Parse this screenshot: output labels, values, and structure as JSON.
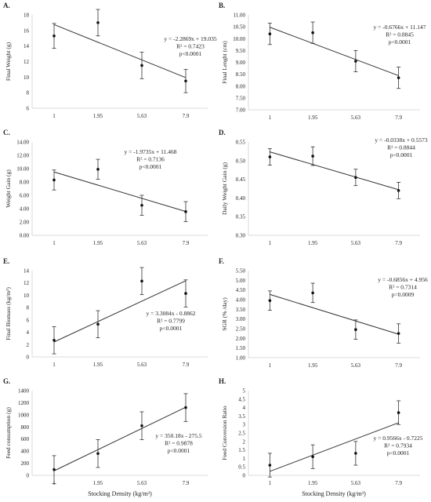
{
  "xlabel": "Stocking Density (kg/m³)",
  "chart_data": [
    {
      "id": "A",
      "letter": "A.",
      "type": "scatter",
      "ylabel": "Final Weight (g)",
      "categories": [
        "1",
        "1.95",
        "5.63",
        "7.9"
      ],
      "values": [
        15.3,
        17.0,
        11.5,
        9.5
      ],
      "errors": [
        1.6,
        1.7,
        1.7,
        1.5
      ],
      "ylim": [
        6,
        18
      ],
      "yticks": [
        6,
        8,
        10,
        12,
        14,
        16,
        18
      ],
      "tick_labels": [
        "6",
        "8",
        "10",
        "12",
        "14",
        "16",
        "18"
      ],
      "trend": [
        16.76,
        9.94
      ],
      "annotation": [
        "y = -2.2869x + 19.035",
        "R² = 0.7423",
        "p<0.0001"
      ],
      "ann_pos": "top-right"
    },
    {
      "id": "B",
      "letter": "B.",
      "type": "scatter",
      "ylabel": "Final Lenght (cm)",
      "categories": [
        "1",
        "1.95",
        "5.63",
        "7.9"
      ],
      "values": [
        10.2,
        10.25,
        9.05,
        8.35
      ],
      "errors": [
        0.45,
        0.45,
        0.45,
        0.45
      ],
      "ylim": [
        7.0,
        11.0
      ],
      "yticks": [
        7.0,
        7.5,
        8.0,
        8.5,
        9.0,
        9.5,
        10.0,
        10.5,
        11.0
      ],
      "tick_labels": [
        "7.00",
        "7.50",
        "8.00",
        "8.50",
        "9.00",
        "9.50",
        "10.00",
        "10.50",
        "11.00"
      ],
      "trend": [
        10.48,
        8.44
      ],
      "annotation": [
        "y = -0.6766x + 11.147",
        "R² = 0.8845",
        "p<0.0001"
      ],
      "ann_pos": "top-right"
    },
    {
      "id": "C",
      "letter": "C.",
      "type": "scatter",
      "ylabel": "Weight Gain (g)",
      "categories": [
        "1",
        "1.95",
        "5.63",
        "7.9"
      ],
      "values": [
        8.3,
        9.9,
        4.5,
        3.55
      ],
      "errors": [
        1.5,
        1.5,
        1.5,
        1.5
      ],
      "ylim": [
        0,
        14
      ],
      "yticks": [
        0,
        2,
        4,
        6,
        8,
        10,
        12,
        14
      ],
      "tick_labels": [
        "0.00",
        "2.00",
        "4.00",
        "6.00",
        "8.00",
        "10.00",
        "12.00",
        "14.00"
      ],
      "trend": [
        9.5,
        3.57
      ],
      "annotation": [
        "y = -1.9735x + 11.468",
        "R² = 0.7136",
        "p<0.0001"
      ],
      "ann_pos": "top-right"
    },
    {
      "id": "D",
      "letter": "D.",
      "type": "scatter",
      "ylabel": "Daily Weight Gain (g)",
      "categories": [
        "1",
        "1.95",
        "5.63",
        "7.9"
      ],
      "values": [
        0.51,
        0.512,
        0.455,
        0.42
      ],
      "errors": [
        0.022,
        0.025,
        0.022,
        0.022
      ],
      "ylim": [
        0.3,
        0.55
      ],
      "yticks": [
        0.3,
        0.35,
        0.4,
        0.45,
        0.5,
        0.55
      ],
      "tick_labels": [
        "0.30",
        "0.35",
        "0.40",
        "0.45",
        "0.50",
        "0.55"
      ],
      "trend": [
        0.5235,
        0.4221
      ],
      "annotation": [
        "y = -0.0338x + 0.5573",
        "R² = 0.8844",
        "p<0.0001"
      ],
      "ann_pos": "top-right"
    },
    {
      "id": "E",
      "letter": "E.",
      "type": "scatter",
      "ylabel": "Final Biomass (kg/m³)",
      "categories": [
        "1",
        "1.95",
        "5.63",
        "7.9"
      ],
      "values": [
        2.7,
        5.3,
        12.3,
        10.3
      ],
      "errors": [
        2.2,
        2.2,
        2.2,
        2.2
      ],
      "ylim": [
        0,
        14
      ],
      "yticks": [
        0,
        2,
        4,
        6,
        8,
        10,
        12,
        14
      ],
      "tick_labels": [
        "0",
        "2",
        "4",
        "6",
        "8",
        "10",
        "12",
        "14"
      ],
      "trend": [
        2.42,
        12.35
      ],
      "annotation": [
        "y = 3.3084x - 0.8862",
        "R² = 0.7799",
        "p<0.0001"
      ],
      "ann_pos": "bottom-right"
    },
    {
      "id": "F",
      "letter": "F.",
      "type": "scatter",
      "ylabel": "SGR (% /day)",
      "categories": [
        "1",
        "1.95",
        "5.63",
        "7.9"
      ],
      "values": [
        3.95,
        4.35,
        2.45,
        2.25
      ],
      "errors": [
        0.5,
        0.5,
        0.5,
        0.5
      ],
      "ylim": [
        1.0,
        5.5
      ],
      "yticks": [
        1.0,
        1.5,
        2.0,
        2.5,
        3.0,
        3.5,
        4.0,
        4.5,
        5.0,
        5.5
      ],
      "tick_labels": [
        "1.00",
        "1.50",
        "2.00",
        "2.50",
        "3.00",
        "3.50",
        "4.00",
        "4.50",
        "5.00",
        "5.50"
      ],
      "trend": [
        4.27,
        2.21
      ],
      "annotation": [
        "y = -0.6856x + 4.956",
        "R² = 0.7314",
        "p=0.0009"
      ],
      "ann_pos": "top-right"
    },
    {
      "id": "G",
      "letter": "G.",
      "type": "scatter",
      "ylabel": "Feed consumption (g)",
      "categories": [
        "1",
        "1.95",
        "5.63",
        "7.9"
      ],
      "values": [
        95,
        360,
        820,
        1120
      ],
      "errors": [
        230,
        230,
        230,
        230
      ],
      "ylim": [
        0,
        1400
      ],
      "yticks": [
        0,
        200,
        400,
        600,
        800,
        1000,
        1200,
        1400
      ],
      "tick_labels": [
        "0",
        "200",
        "400",
        "600",
        "800",
        "1000",
        "1200",
        "1400"
      ],
      "trend": [
        74.7,
        1125.2
      ],
      "annotation": [
        "y = 350.18x - 275.5",
        "R² = 0.9878",
        "p<0.0001"
      ],
      "ann_pos": "mid-right"
    },
    {
      "id": "H",
      "letter": "H.",
      "type": "scatter",
      "ylabel": "Feed Conversion Ratio",
      "categories": [
        "1",
        "1.95",
        "5.63",
        "7.9"
      ],
      "values": [
        0.6,
        1.1,
        1.3,
        3.7
      ],
      "errors": [
        0.7,
        0.7,
        0.7,
        0.7
      ],
      "ylim": [
        0,
        5
      ],
      "yticks": [
        0,
        0.5,
        1,
        1.5,
        2,
        2.5,
        3,
        3.5,
        4,
        4.5,
        5
      ],
      "tick_labels": [
        "0",
        "0.5",
        "1",
        "1.5",
        "2",
        "2.5",
        "3",
        "3.5",
        "4",
        "4.5",
        "5"
      ],
      "trend": [
        0.234,
        3.1038
      ],
      "annotation": [
        "y = 0.9566x - 0.7225",
        "R² = 0.7934",
        "p<0.0001"
      ],
      "ann_pos": "bottom-right"
    }
  ]
}
